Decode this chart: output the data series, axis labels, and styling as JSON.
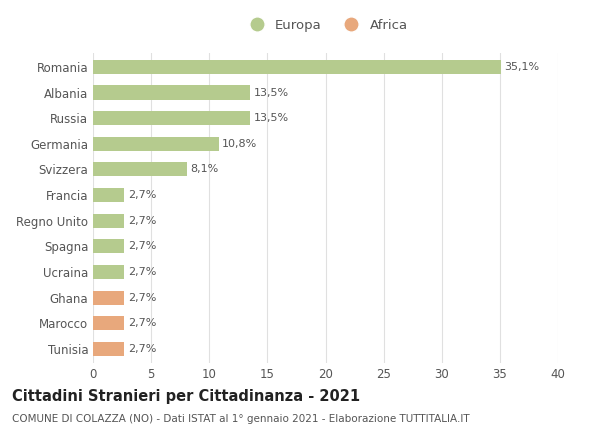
{
  "countries": [
    "Romania",
    "Albania",
    "Russia",
    "Germania",
    "Svizzera",
    "Francia",
    "Regno Unito",
    "Spagna",
    "Ucraina",
    "Ghana",
    "Marocco",
    "Tunisia"
  ],
  "values": [
    35.1,
    13.5,
    13.5,
    10.8,
    8.1,
    2.7,
    2.7,
    2.7,
    2.7,
    2.7,
    2.7,
    2.7
  ],
  "labels": [
    "35,1%",
    "13,5%",
    "13,5%",
    "10,8%",
    "8,1%",
    "2,7%",
    "2,7%",
    "2,7%",
    "2,7%",
    "2,7%",
    "2,7%",
    "2,7%"
  ],
  "continent": [
    "Europa",
    "Europa",
    "Europa",
    "Europa",
    "Europa",
    "Europa",
    "Europa",
    "Europa",
    "Europa",
    "Africa",
    "Africa",
    "Africa"
  ],
  "color_europa": "#b5cb8e",
  "color_africa": "#e8a87c",
  "legend_europa": "Europa",
  "legend_africa": "Africa",
  "title": "Cittadini Stranieri per Cittadinanza - 2021",
  "subtitle": "COMUNE DI COLAZZA (NO) - Dati ISTAT al 1° gennaio 2021 - Elaborazione TUTTITALIA.IT",
  "xlim": [
    0,
    40
  ],
  "xticks": [
    0,
    5,
    10,
    15,
    20,
    25,
    30,
    35,
    40
  ],
  "background_color": "#ffffff",
  "grid_color": "#e0e0e0",
  "bar_height": 0.55,
  "title_fontsize": 10.5,
  "subtitle_fontsize": 7.5,
  "label_fontsize": 8,
  "tick_fontsize": 8.5,
  "legend_fontsize": 9.5
}
